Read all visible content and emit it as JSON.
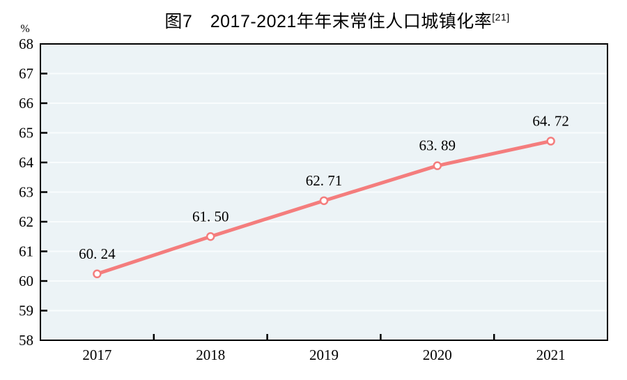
{
  "title": {
    "text": "图7　2017-2021年年末常住人口城镇化率",
    "footnote": "[21]"
  },
  "chart_data": {
    "type": "line",
    "categories": [
      "2017",
      "2018",
      "2019",
      "2020",
      "2021"
    ],
    "values": [
      60.24,
      61.5,
      62.71,
      63.89,
      64.72
    ],
    "labels": [
      "60. 24",
      "61. 50",
      "62. 71",
      "63. 89",
      "64. 72"
    ],
    "title": "图7　2017-2021年年末常住人口城镇化率",
    "footnote": "[21]",
    "xlabel": "",
    "ylabel": "%",
    "ylim": [
      58,
      68
    ],
    "ytick_step": 1,
    "grid": true,
    "legend": "none",
    "colors": {
      "line": "#f47d7d",
      "marker_fill": "#ffffff",
      "plot_bg": "#ecf3f6",
      "grid": "#f9fcfd",
      "axis": "#000000",
      "text": "#000000"
    }
  }
}
